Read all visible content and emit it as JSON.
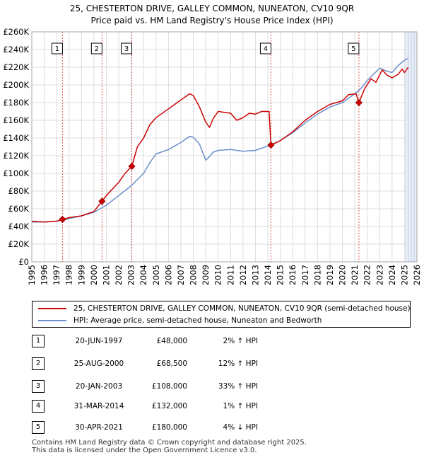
{
  "title_line1": "25, CHESTERTON DRIVE, GALLEY COMMON, NUNEATON, CV10 9QR",
  "title_line2": "Price paid vs. HM Land Registry's House Price Index (HPI)",
  "colors": {
    "price_paid": "#cc0000",
    "hpi": "#6a8fcc",
    "grid": "#dddddd",
    "shade": "#e8eef8",
    "marker_line": "#e05555"
  },
  "legend": {
    "price_label": "25, CHESTERTON DRIVE, GALLEY COMMON, NUNEATON, CV10 9QR (semi-detached house)",
    "hpi_label": "HPI: Average price, semi-detached house, Nuneaton and Bedworth"
  },
  "sales": [
    {
      "num": "1",
      "date": "20-JUN-1997",
      "price": "£48,000",
      "hpi": "2% ↑ HPI"
    },
    {
      "num": "2",
      "date": "25-AUG-2000",
      "price": "£68,500",
      "hpi": "12% ↑ HPI"
    },
    {
      "num": "3",
      "date": "20-JAN-2003",
      "price": "£108,000",
      "hpi": "33% ↑ HPI"
    },
    {
      "num": "4",
      "date": "31-MAR-2014",
      "price": "£132,000",
      "hpi": "1% ↑ HPI"
    },
    {
      "num": "5",
      "date": "30-APR-2021",
      "price": "£180,000",
      "hpi": "4% ↓ HPI"
    }
  ],
  "footer_line1": "Contains HM Land Registry data © Crown copyright and database right 2025.",
  "footer_line2": "This data is licensed under the Open Government Licence v3.0.",
  "chart_data": {
    "type": "line",
    "title": "25, CHESTERTON DRIVE, GALLEY COMMON, NUNEATON, CV10 9QR — Price paid vs. HM Land Registry's House Price Index (HPI)",
    "xlim": [
      1995,
      2026
    ],
    "ylim": [
      0,
      260000
    ],
    "y_ticks": [
      0,
      20000,
      40000,
      60000,
      80000,
      100000,
      120000,
      140000,
      160000,
      180000,
      200000,
      220000,
      240000,
      260000
    ],
    "y_tick_labels": [
      "£0",
      "£20K",
      "£40K",
      "£60K",
      "£80K",
      "£100K",
      "£120K",
      "£140K",
      "£160K",
      "£180K",
      "£200K",
      "£220K",
      "£240K",
      "£260K"
    ],
    "x_ticks": [
      "1995",
      "1996",
      "1997",
      "1998",
      "1999",
      "2000",
      "2001",
      "2002",
      "2003",
      "2004",
      "2005",
      "2006",
      "2007",
      "2008",
      "2009",
      "2010",
      "2011",
      "2012",
      "2013",
      "2014",
      "2015",
      "2016",
      "2017",
      "2018",
      "2019",
      "2020",
      "2021",
      "2022",
      "2023",
      "2024",
      "2025",
      "2026"
    ],
    "grid": true,
    "forecast_shade_from": 2025.1,
    "sale_markers": [
      {
        "label": "1",
        "x": 1997.47,
        "y": 48000
      },
      {
        "label": "2",
        "x": 2000.65,
        "y": 68500
      },
      {
        "label": "3",
        "x": 2003.05,
        "y": 108000
      },
      {
        "label": "4",
        "x": 2014.25,
        "y": 132000
      },
      {
        "label": "5",
        "x": 2021.33,
        "y": 180000
      }
    ],
    "series": [
      {
        "name": "25, CHESTERTON DRIVE, GALLEY COMMON, NUNEATON, CV10 9QR (semi-detached house)",
        "x": [
          1995,
          1996,
          1997,
          1997.47,
          1998,
          1999,
          2000,
          2000.65,
          2001,
          2002,
          2002.5,
          2003.05,
          2003.5,
          2004,
          2004.5,
          2005,
          2006,
          2007,
          2007.7,
          2008,
          2008.5,
          2009,
          2009.3,
          2009.6,
          2010,
          2011,
          2011.5,
          2012,
          2012.5,
          2013,
          2013.5,
          2014.1,
          2014.25,
          2015,
          2016,
          2017,
          2018,
          2019,
          2020,
          2020.5,
          2021.1,
          2021.33,
          2021.8,
          2022.3,
          2022.7,
          2023.2,
          2023.6,
          2024,
          2024.5,
          2024.8,
          2025,
          2025.3
        ],
        "values": [
          46000,
          45000,
          46000,
          48000,
          50000,
          52000,
          57000,
          68500,
          75000,
          90000,
          100000,
          108000,
          130000,
          140000,
          155000,
          163000,
          173000,
          183000,
          190000,
          188000,
          175000,
          158000,
          152000,
          162000,
          170000,
          168000,
          160000,
          163000,
          168000,
          167000,
          170000,
          170000,
          132000,
          137000,
          147000,
          160000,
          170000,
          178000,
          182000,
          189000,
          190000,
          180000,
          196000,
          207000,
          203000,
          217000,
          211000,
          208000,
          212000,
          218000,
          214000,
          220000
        ]
      },
      {
        "name": "HPI: Average price, semi-detached house, Nuneaton and Bedworth",
        "x": [
          1995,
          1996,
          1997,
          1998,
          1999,
          2000,
          2001,
          2002,
          2003,
          2004,
          2004.5,
          2005,
          2006,
          2007,
          2007.7,
          2008,
          2008.5,
          2009,
          2009.3,
          2009.6,
          2010,
          2011,
          2012,
          2013,
          2014,
          2015,
          2016,
          2017,
          2018,
          2019,
          2020,
          2020.5,
          2021,
          2021.5,
          2022,
          2022.5,
          2023,
          2023.5,
          2024,
          2024.5,
          2025,
          2025.3
        ],
        "values": [
          45000,
          45000,
          46000,
          49000,
          52000,
          56000,
          64000,
          75000,
          86000,
          100000,
          112000,
          122000,
          127000,
          135000,
          142000,
          141000,
          133000,
          115000,
          119000,
          124000,
          126000,
          127000,
          125000,
          126000,
          131000,
          137000,
          146000,
          157000,
          167000,
          175000,
          180000,
          185000,
          190000,
          196000,
          205000,
          212000,
          219000,
          216000,
          214000,
          222000,
          228000,
          230000
        ]
      }
    ]
  }
}
